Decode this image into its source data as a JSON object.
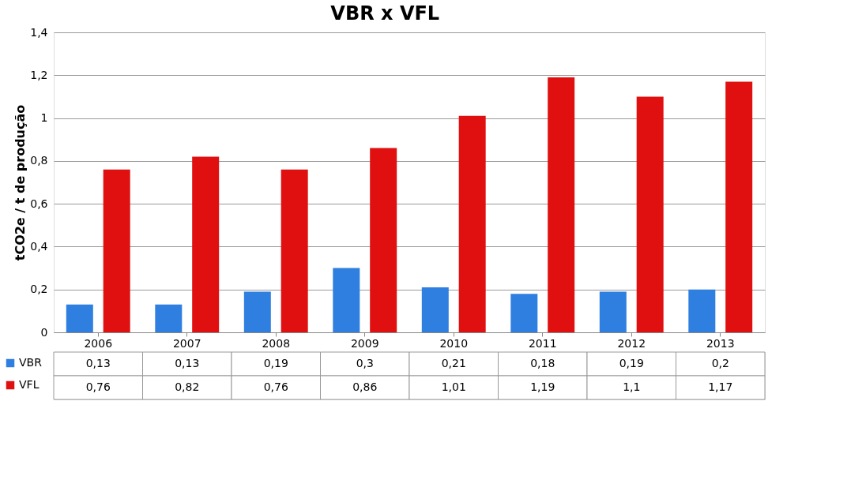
{
  "chart_data": {
    "type": "bar",
    "title": "VBR x VFL",
    "ylabel": "tCO2e / t de produção",
    "categories": [
      "2006",
      "2007",
      "2008",
      "2009",
      "2010",
      "2011",
      "2012",
      "2013"
    ],
    "series": [
      {
        "name": "VBR",
        "color": "#2f7fe0",
        "values": [
          0.13,
          0.13,
          0.19,
          0.3,
          0.21,
          0.18,
          0.19,
          0.2
        ],
        "value_labels": [
          "0,13",
          "0,13",
          "0,19",
          "0,3",
          "0,21",
          "0,18",
          "0,19",
          "0,2"
        ]
      },
      {
        "name": "VFL",
        "color": "#e01010",
        "values": [
          0.76,
          0.82,
          0.76,
          0.86,
          1.01,
          1.19,
          1.1,
          1.17
        ],
        "value_labels": [
          "0,76",
          "0,82",
          "0,76",
          "0,86",
          "1,01",
          "1,19",
          "1,1",
          "1,17"
        ]
      }
    ],
    "ylim": [
      0,
      1.4
    ],
    "yticks": [
      0,
      {
        "value": 0.2,
        "label": "0,2"
      },
      {
        "value": 0.4,
        "label": "0,4"
      },
      {
        "value": 0.6,
        "label": "0,6"
      },
      {
        "value": 0.8,
        "label": "0,8"
      },
      1,
      {
        "value": 1.2,
        "label": "1,2"
      },
      {
        "value": 1.4,
        "label": "1,4"
      }
    ],
    "grid": "y",
    "legend": "bottom left"
  }
}
